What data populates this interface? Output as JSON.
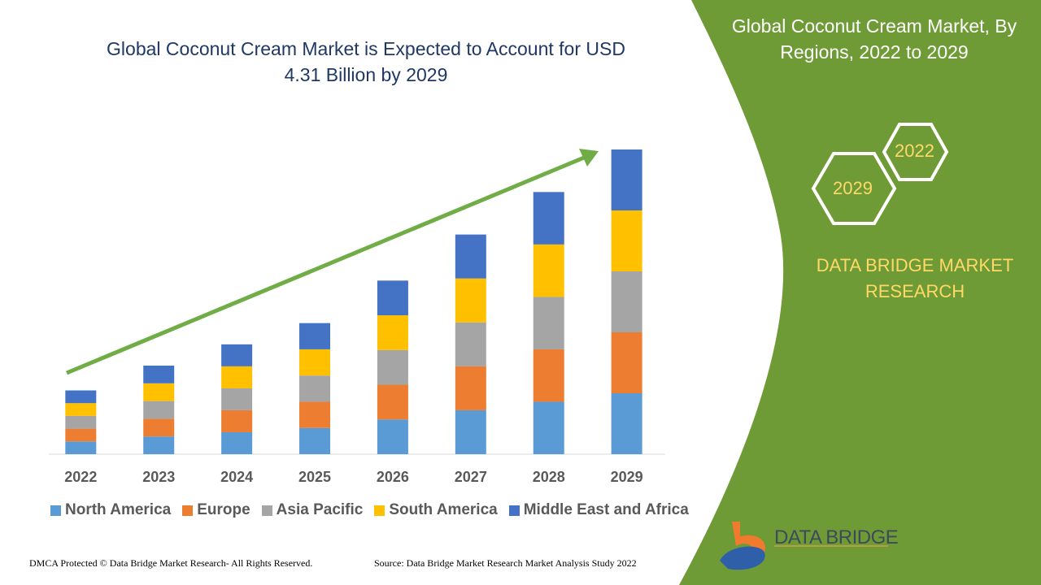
{
  "header": {
    "title": "Global Coconut Cream Market is Expected to Account for USD 4.31 Billion by 2029"
  },
  "side_panel": {
    "title": "Global Coconut Cream Market, By Regions, 2022 to 2029",
    "hex_top": "2022",
    "hex_bottom": "2029",
    "brand": "DATA BRIDGE MARKET RESEARCH",
    "logo_text": "DATA BRIDGE",
    "panel_color": "#6f9b37"
  },
  "footer": {
    "left": "DMCA Protected © Data Bridge Market Research- All Rights Reserved.",
    "right": "Source: Data Bridge Market Research Market Analysis Study 2022"
  },
  "chart_data": {
    "type": "bar",
    "stacked": true,
    "title": "Global Coconut Cream Market is Expected to Account for USD 4.31 Billion by 2029",
    "categories": [
      "2022",
      "2023",
      "2024",
      "2025",
      "2026",
      "2027",
      "2028",
      "2029"
    ],
    "series": [
      {
        "name": "North America",
        "color": "#5b9bd5",
        "values": [
          0.18,
          0.25,
          0.31,
          0.37,
          0.49,
          0.62,
          0.74,
          0.86
        ]
      },
      {
        "name": "Europe",
        "color": "#ed7d31",
        "values": [
          0.18,
          0.25,
          0.31,
          0.37,
          0.49,
          0.62,
          0.74,
          0.86
        ]
      },
      {
        "name": "Asia Pacific",
        "color": "#a5a5a5",
        "values": [
          0.18,
          0.25,
          0.31,
          0.37,
          0.49,
          0.62,
          0.74,
          0.86
        ]
      },
      {
        "name": "South America",
        "color": "#ffc000",
        "values": [
          0.18,
          0.25,
          0.31,
          0.37,
          0.49,
          0.62,
          0.74,
          0.86
        ]
      },
      {
        "name": "Middle East and Africa",
        "color": "#4472c4",
        "values": [
          0.18,
          0.25,
          0.31,
          0.37,
          0.49,
          0.62,
          0.74,
          0.86
        ]
      }
    ],
    "ylim": [
      0,
      4.3
    ],
    "grid": false,
    "legend": "bottom",
    "trend_arrow_color": "#70ad47"
  }
}
